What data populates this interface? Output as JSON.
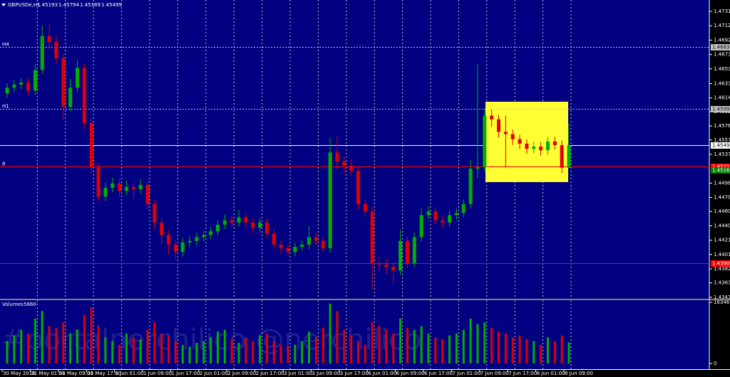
{
  "chart_data": {
    "type": "candlestick",
    "symbol": "GBPUSDe,H1",
    "background": "#000080",
    "grid": true,
    "up_color": "#00b000",
    "down_color": "#e00000",
    "categories": [
      "30 May 2016",
      null,
      null,
      null,
      "31 May 01:00",
      null,
      null,
      null,
      "31 May 09:00",
      null,
      null,
      null,
      "31 May 17:00",
      null,
      null,
      null,
      "1 Jun 01:00",
      null,
      null,
      null,
      "1 Jun 09:00",
      null,
      null,
      null,
      "1 Jun 17:00",
      null,
      null,
      null,
      "2 Jun 01:00",
      null,
      null,
      null,
      "2 Jun 09:00",
      null,
      null,
      null,
      "2 Jun 17:00",
      null,
      null,
      null,
      "3 Jun 01:00",
      null,
      null,
      null,
      "3 Jun 09:00",
      null,
      null,
      null,
      "3 Jun 17:00",
      null,
      null,
      null,
      "6 Jun 01:00",
      null,
      null,
      null,
      "6 Jun 09:00",
      null,
      null,
      null,
      "6 Jun 17:00",
      null,
      null,
      null,
      "7 Jun 01:00",
      null,
      null,
      null,
      "7 Jun 09:00",
      null,
      null,
      null,
      "7 Jun 17:00",
      null,
      null,
      null,
      "8 Jun 01:00",
      null,
      null,
      null,
      "8 Jun 09:00"
    ],
    "open": [
      1.462,
      1.4628,
      1.4632,
      1.4635,
      1.4624,
      1.4652,
      1.4698,
      1.469,
      1.4668,
      1.4602,
      1.4628,
      1.4655,
      1.458,
      1.452,
      1.448,
      1.4492,
      1.4498,
      1.4488,
      1.4493,
      1.449,
      1.4496,
      1.447,
      1.4445,
      1.4428,
      1.4415,
      1.4405,
      1.4418,
      1.442,
      1.4425,
      1.4428,
      1.4433,
      1.4442,
      1.4448,
      1.4445,
      1.4452,
      1.4445,
      1.4438,
      1.4445,
      1.443,
      1.4415,
      1.441,
      1.4405,
      1.4412,
      1.4415,
      1.4425,
      1.442,
      1.441,
      1.454,
      1.4528,
      1.4522,
      1.4515,
      1.447,
      1.446,
      1.439,
      1.4388,
      1.4385,
      1.438,
      1.442,
      1.439,
      1.4425,
      1.4455,
      1.446,
      1.4448,
      1.4445,
      1.4455,
      1.4458,
      1.447,
      1.4518,
      1.452,
      1.459,
      1.4585,
      1.4568,
      1.4565,
      1.4558,
      1.4552,
      1.4545,
      1.4548,
      1.4543,
      1.4555,
      1.455,
      1.45193
    ],
    "high": [
      1.4634,
      1.4638,
      1.4641,
      1.4641,
      1.466,
      1.4712,
      1.4715,
      1.4698,
      1.4674,
      1.464,
      1.4665,
      1.4661,
      1.4586,
      1.4526,
      1.45,
      1.4506,
      1.4504,
      1.4502,
      1.4499,
      1.4504,
      1.4502,
      1.4476,
      1.4451,
      1.4434,
      1.4421,
      1.4424,
      1.4426,
      1.4431,
      1.4434,
      1.4439,
      1.4448,
      1.4456,
      1.4454,
      1.4462,
      1.4458,
      1.4451,
      1.4451,
      1.4451,
      1.4436,
      1.4421,
      1.4416,
      1.4418,
      1.4421,
      1.444,
      1.4431,
      1.4426,
      1.456,
      1.4562,
      1.4534,
      1.453,
      1.4521,
      1.4476,
      1.4466,
      1.4398,
      1.4396,
      1.4391,
      1.4435,
      1.4426,
      1.4431,
      1.4465,
      1.4468,
      1.4466,
      1.4454,
      1.4461,
      1.4464,
      1.4476,
      1.453,
      1.466,
      1.46,
      1.4598,
      1.4591,
      1.459,
      1.4571,
      1.4564,
      1.4558,
      1.4554,
      1.4554,
      1.4561,
      1.4561,
      1.4556,
      1.45794
    ],
    "low": [
      1.4614,
      1.4622,
      1.4626,
      1.4618,
      1.4618,
      1.4646,
      1.468,
      1.466,
      1.4585,
      1.4596,
      1.4622,
      1.4572,
      1.4512,
      1.4474,
      1.4474,
      1.4486,
      1.448,
      1.4482,
      1.4478,
      1.4484,
      1.4462,
      1.4435,
      1.4415,
      1.4402,
      1.4395,
      1.4399,
      1.4412,
      1.4414,
      1.4419,
      1.4422,
      1.4427,
      1.4436,
      1.4439,
      1.4439,
      1.4437,
      1.443,
      1.4432,
      1.4424,
      1.4409,
      1.4402,
      1.4399,
      1.4399,
      1.4406,
      1.4409,
      1.4414,
      1.4404,
      1.4404,
      1.4518,
      1.4512,
      1.4508,
      1.4462,
      1.4452,
      1.4355,
      1.4378,
      1.4375,
      1.4362,
      1.4374,
      1.4384,
      1.4384,
      1.4419,
      1.4449,
      1.4442,
      1.4439,
      1.4439,
      1.4449,
      1.4452,
      1.4464,
      1.4505,
      1.4514,
      1.4575,
      1.456,
      1.452,
      1.455,
      1.4545,
      1.4538,
      1.4539,
      1.4536,
      1.4537,
      1.4544,
      1.4512,
      1.45189
    ],
    "close": [
      1.4628,
      1.4632,
      1.4635,
      1.4624,
      1.4652,
      1.4698,
      1.469,
      1.4668,
      1.4602,
      1.4628,
      1.4655,
      1.458,
      1.452,
      1.448,
      1.4492,
      1.4498,
      1.4488,
      1.4493,
      1.449,
      1.4496,
      1.447,
      1.4445,
      1.4428,
      1.4415,
      1.4405,
      1.4418,
      1.442,
      1.4425,
      1.4428,
      1.4433,
      1.4442,
      1.4448,
      1.4445,
      1.4452,
      1.4445,
      1.4438,
      1.4445,
      1.443,
      1.4415,
      1.441,
      1.4405,
      1.4412,
      1.4415,
      1.4425,
      1.442,
      1.441,
      1.454,
      1.4528,
      1.4522,
      1.4515,
      1.447,
      1.446,
      1.439,
      1.4388,
      1.4385,
      1.438,
      1.442,
      1.439,
      1.4425,
      1.4455,
      1.446,
      1.4448,
      1.4445,
      1.4455,
      1.4458,
      1.447,
      1.4518,
      1.452,
      1.459,
      1.4585,
      1.4568,
      1.4565,
      1.4558,
      1.4552,
      1.4545,
      1.4548,
      1.4543,
      1.4555,
      1.455,
      1.45193,
      1.45499
    ],
    "ylim": [
      1.43415,
      1.4745
    ],
    "yticks": [
      1.47315,
      {
        "value": 1.4712,
        "label": "1.47120"
      },
      1.46925,
      {
        "value": 1.4673,
        "label": "1.46730"
      },
      1.46535,
      1.46335,
      {
        "value": 1.4614,
        "label": "1.46140"
      },
      1.45955,
      {
        "value": 1.4576,
        "label": "1.45760"
      },
      {
        "value": 1.4557,
        "label": "1.45570"
      },
      1.45375,
      1.44985,
      {
        "value": 1.4479,
        "label": "1.44790"
      },
      {
        "value": 1.446,
        "label": "1.44600"
      },
      1.44405,
      {
        "value": 1.4421,
        "label": "1.44210"
      },
      1.44015,
      {
        "value": 1.4382,
        "label": "1.43820"
      },
      {
        "value": 1.4363,
        "label": "1.43630"
      },
      1.43435
    ],
    "levels": [
      {
        "label": "H4",
        "value": 1.46833,
        "color": "#c0c0c0",
        "style": "dotted"
      },
      {
        "label": "H1",
        "value": 1.45996,
        "color": "#c0c0c0",
        "style": "dotted"
      },
      {
        "value": 1.45499,
        "color": "#ffffff",
        "style": "solid"
      },
      {
        "label": "8",
        "value": 1.45212,
        "color": "#ff0000",
        "style": "solid"
      },
      {
        "value": 1.45165,
        "color": "#008000",
        "style": "none"
      },
      {
        "value": 1.43902,
        "color": "#ff0000",
        "style": "solid"
      }
    ],
    "volume": {
      "name": "Volumes",
      "values": [
        6000,
        7500,
        9000,
        8000,
        12000,
        14000,
        10000,
        9500,
        11000,
        8000,
        9000,
        13000,
        15000,
        10000,
        7000,
        6000,
        5000,
        8000,
        7000,
        6500,
        9000,
        11000,
        8000,
        7500,
        6000,
        5000,
        4500,
        5500,
        6000,
        7000,
        8500,
        9000,
        6500,
        5500,
        7000,
        6000,
        7500,
        8000,
        6000,
        5000,
        4500,
        5000,
        6000,
        8500,
        7000,
        9500,
        16000,
        14000,
        9000,
        7500,
        6000,
        5000,
        11000,
        10000,
        9000,
        8000,
        12000,
        9500,
        9000,
        10000,
        8000,
        7000,
        6500,
        7500,
        8000,
        9000,
        12000,
        10500,
        11000,
        9500,
        8500,
        8000,
        7000,
        7500,
        6500,
        6000,
        5000,
        7000,
        6000,
        7500,
        5660
      ],
      "ylim": [
        0,
        16346
      ],
      "yticks": [
        0,
        16346
      ]
    },
    "watermark": "#portalnerchilico @nerchilico"
  }
}
